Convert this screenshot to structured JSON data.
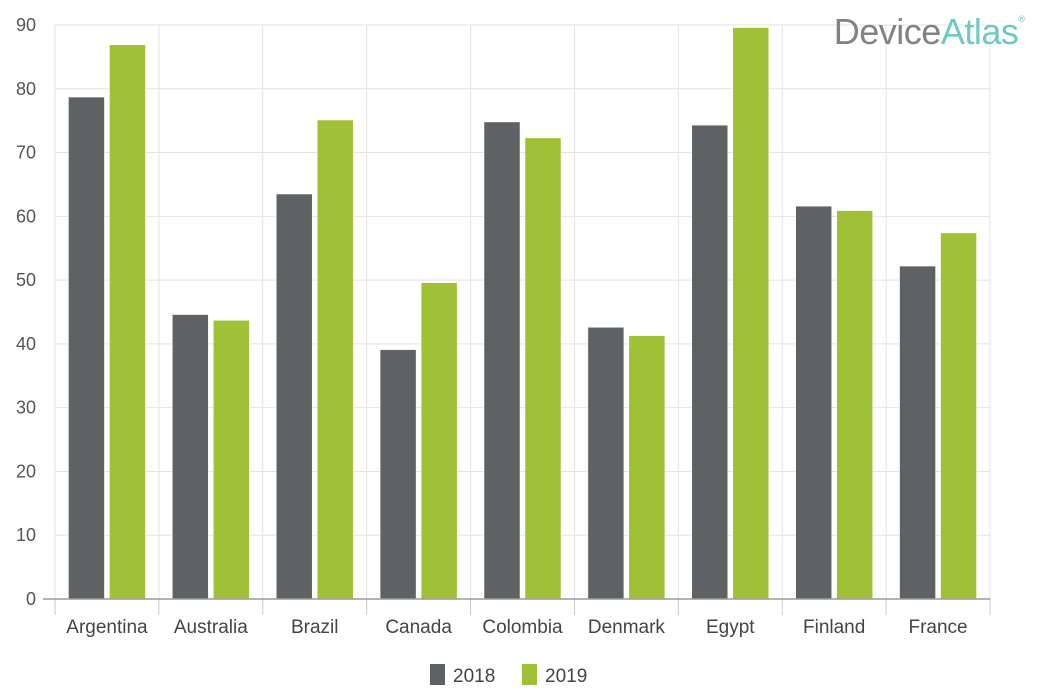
{
  "brand": {
    "part1": "Device",
    "part2": "Atlas",
    "mark": "®",
    "color1": "#808285",
    "color2": "#6dc9c5"
  },
  "chart_data": {
    "type": "bar",
    "categories": [
      "Argentina",
      "Australia",
      "Brazil",
      "Canada",
      "Colombia",
      "Denmark",
      "Egypt",
      "Finland",
      "France"
    ],
    "series": [
      {
        "name": "2018",
        "color": "#5f6264",
        "values": [
          78.7,
          44.6,
          63.5,
          39.1,
          74.8,
          42.6,
          74.3,
          61.6,
          52.2
        ]
      },
      {
        "name": "2019",
        "color": "#a0c037",
        "values": [
          86.9,
          43.7,
          75.1,
          49.6,
          72.3,
          41.3,
          89.6,
          60.9,
          57.4
        ]
      }
    ],
    "ylim": [
      0,
      90
    ],
    "yticks": [
      0,
      10,
      20,
      30,
      40,
      50,
      60,
      70,
      80,
      90
    ],
    "title": "",
    "xlabel": "",
    "ylabel": "",
    "grid": true,
    "legend": "bottom-center"
  }
}
